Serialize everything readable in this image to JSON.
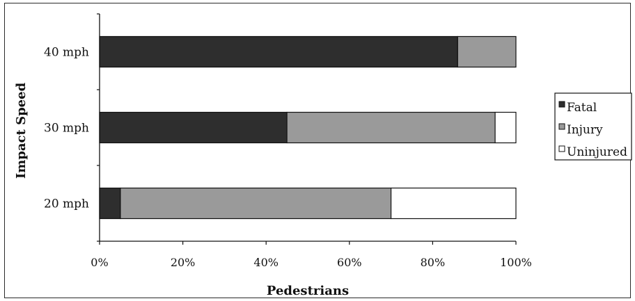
{
  "chart_data": {
    "type": "bar",
    "stacked": true,
    "orientation": "horizontal",
    "categories": [
      "40 mph",
      "30 mph",
      "20 mph"
    ],
    "series": [
      {
        "name": "Fatal",
        "values": [
          86,
          45,
          5
        ],
        "color": "#2e2e2e"
      },
      {
        "name": "Injury",
        "values": [
          14,
          50,
          65
        ],
        "color": "#9a9a9a"
      },
      {
        "name": "Uninjured",
        "values": [
          0,
          5,
          30
        ],
        "color": "#ffffff"
      }
    ],
    "xlabel": "Pedestrians",
    "ylabel": "Impact Speed",
    "xlim": [
      0,
      100
    ],
    "x_ticks": [
      "0%",
      "20%",
      "40%",
      "60%",
      "80%",
      "100%"
    ],
    "grid": false,
    "legend_position": "right"
  }
}
